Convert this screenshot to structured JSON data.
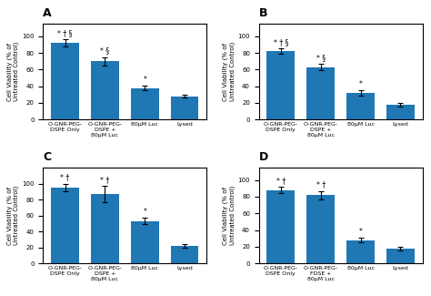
{
  "chart_data": [
    {
      "type": "bar",
      "title": "A",
      "categories": [
        "O-GNR-PEG-DSPE Only",
        "O-GNR-PEG-DSPE +\n80μM Luc",
        "80μM Luc",
        "Lysed"
      ],
      "values": [
        92,
        70,
        38,
        28
      ],
      "errors": [
        4,
        5,
        3,
        2
      ],
      "annotations": [
        "* † §",
        "* §",
        "*",
        null
      ],
      "ylabel": "Cell Viability (% of Untreated Control)",
      "ylim": [
        0,
        115
      ],
      "yticks": [
        0,
        20,
        40,
        60,
        80,
        100
      ]
    },
    {
      "type": "bar",
      "title": "B",
      "categories": [
        "O-GNR-PEG-DSPE Only",
        "O-GNR-PEG-DSPE +\n80μM Luc",
        "80μM Luc",
        "Lysed"
      ],
      "values": [
        82,
        63,
        32,
        18
      ],
      "errors": [
        3,
        4,
        3,
        2
      ],
      "annotations": [
        "* † §",
        "* §",
        "*",
        null
      ],
      "ylabel": "Cell Viability (% of Untreated Control)",
      "ylim": [
        0,
        115
      ],
      "yticks": [
        0,
        20,
        40,
        60,
        80,
        100
      ]
    },
    {
      "type": "bar",
      "title": "C",
      "categories": [
        "O-GNR-PEG-DSPE Only",
        "O-GNR-PEG-DSPE +\n80μM Luc",
        "80μM Luc",
        "Lysed"
      ],
      "values": [
        95,
        87,
        53,
        22
      ],
      "errors": [
        5,
        10,
        4,
        2
      ],
      "annotations": [
        "* †",
        "* †",
        "*",
        null
      ],
      "ylabel": "Cell Viability (% of Untreated Control)",
      "ylim": [
        0,
        120
      ],
      "yticks": [
        0,
        20,
        40,
        60,
        80,
        100
      ]
    },
    {
      "type": "bar",
      "title": "D",
      "categories": [
        "O-GNR-PEG-DSPE Only",
        "O-GNR-PEG-FDSE +\n80μM Luc",
        "80μM Luc",
        "Lysed"
      ],
      "values": [
        88,
        82,
        28,
        18
      ],
      "errors": [
        4,
        5,
        3,
        2
      ],
      "annotations": [
        "* †",
        "* †",
        "*",
        null
      ],
      "ylabel": "Cell Viability (% of Untreated Control)",
      "ylim": [
        0,
        115
      ],
      "yticks": [
        0,
        20,
        40,
        60,
        80,
        100
      ]
    }
  ]
}
